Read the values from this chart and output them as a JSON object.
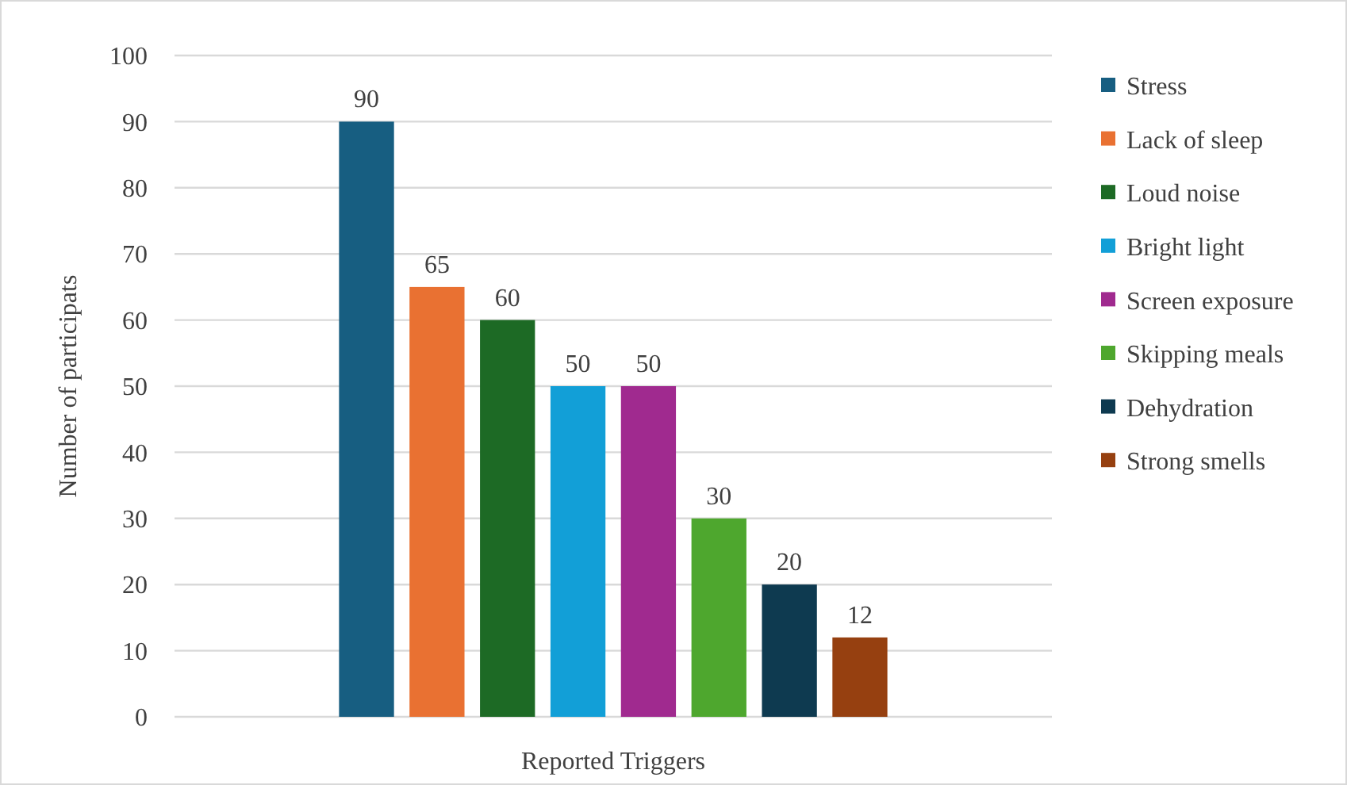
{
  "chart_data": {
    "type": "bar",
    "xlabel": "Reported Triggers",
    "ylabel": "Number of participats",
    "categories": [
      null
    ],
    "series": [
      {
        "name": "Stress",
        "color": "#175e81",
        "values": [
          90
        ]
      },
      {
        "name": "Lack of sleep",
        "color": "#e97132",
        "values": [
          65
        ]
      },
      {
        "name": "Loud noise",
        "color": "#1d6a25",
        "values": [
          60
        ]
      },
      {
        "name": "Bright light",
        "color": "#129fd7",
        "values": [
          50
        ]
      },
      {
        "name": "Screen exposure",
        "color": "#a02a8f",
        "values": [
          50
        ]
      },
      {
        "name": "Skipping meals",
        "color": "#4ea72e",
        "values": [
          30
        ]
      },
      {
        "name": "Dehydration",
        "color": "#0e3a50",
        "values": [
          20
        ]
      },
      {
        "name": "Strong smells",
        "color": "#964010",
        "values": [
          12
        ]
      }
    ],
    "ylim": [
      0,
      100
    ],
    "yticks": [
      0,
      10,
      20,
      30,
      40,
      50,
      60,
      70,
      80,
      90,
      100
    ],
    "grid": "y",
    "legend": "right",
    "data_labels": true
  }
}
